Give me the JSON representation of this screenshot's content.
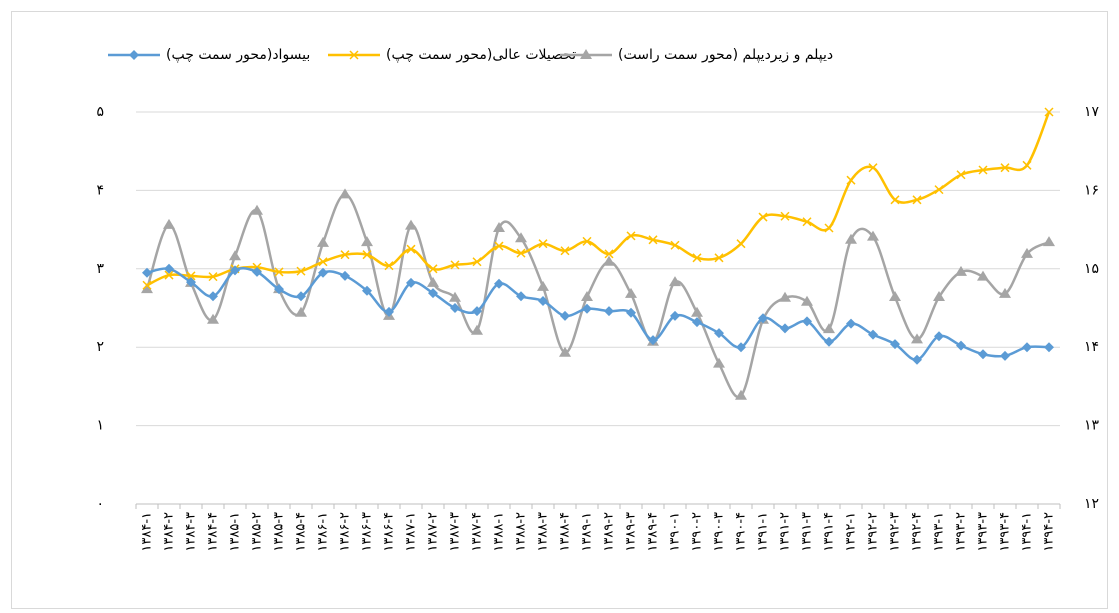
{
  "chart_data": {
    "type": "line",
    "categories": [
      "۱۳۸۴-۱",
      "۱۳۸۴-۲",
      "۱۳۸۴-۳",
      "۱۳۸۴-۴",
      "۱۳۸۵-۱",
      "۱۳۸۵-۲",
      "۱۳۸۵-۳",
      "۱۳۸۵-۴",
      "۱۳۸۶-۱",
      "۱۳۸۶-۲",
      "۱۳۸۶-۳",
      "۱۳۸۶-۴",
      "۱۳۸۷-۱",
      "۱۳۸۷-۲",
      "۱۳۸۷-۳",
      "۱۳۸۷-۴",
      "۱۳۸۸-۱",
      "۱۳۸۸-۲",
      "۱۳۸۸-۳",
      "۱۳۸۸-۴",
      "۱۳۸۹-۱",
      "۱۳۸۹-۲",
      "۱۳۸۹-۳",
      "۱۳۸۹-۴",
      "۱۳۹۰-۱",
      "۱۳۹۰-۲",
      "۱۳۹۰-۳",
      "۱۳۹۰-۴",
      "۱۳۹۱-۱",
      "۱۳۹۱-۲",
      "۱۳۹۱-۳",
      "۱۳۹۱-۴",
      "۱۳۹۲-۱",
      "۱۳۹۲-۲",
      "۱۳۹۲-۳",
      "۱۳۹۲-۴",
      "۱۳۹۳-۱",
      "۱۳۹۳-۲",
      "۱۳۹۳-۳",
      "۱۳۹۳-۴",
      "۱۳۹۴-۱",
      "۱۳۹۴-۲"
    ],
    "series": [
      {
        "name": "بیسواد(محور سمت چپ)",
        "color": "#5b9bd5",
        "marker": "diamond",
        "values": [
          2.95,
          3.0,
          2.83,
          2.65,
          2.98,
          2.96,
          2.74,
          2.65,
          2.95,
          2.91,
          2.72,
          2.45,
          2.82,
          2.69,
          2.5,
          2.46,
          2.81,
          2.65,
          2.59,
          2.4,
          2.49,
          2.46,
          2.44,
          2.09,
          2.4,
          2.32,
          2.18,
          2.0,
          2.37,
          2.24,
          2.33,
          2.07,
          2.3,
          2.16,
          2.04,
          1.84,
          2.14,
          2.02,
          1.91,
          1.89,
          2.0,
          2.0
        ]
      },
      {
        "name": "تحصیلات عالی(محور سمت چپ)",
        "color": "#ffc000",
        "marker": "x",
        "values": [
          2.79,
          2.92,
          2.91,
          2.9,
          3.0,
          3.02,
          2.96,
          2.97,
          3.09,
          3.18,
          3.18,
          3.04,
          3.25,
          3.0,
          3.05,
          3.09,
          3.29,
          3.2,
          3.32,
          3.23,
          3.35,
          3.19,
          3.42,
          3.37,
          3.3,
          3.14,
          3.14,
          3.32,
          3.66,
          3.67,
          3.6,
          3.52,
          4.13,
          4.29,
          3.88,
          3.88,
          4.01,
          4.2,
          4.26,
          4.29,
          4.32,
          5.0
        ]
      },
      {
        "name": "دیپلم و زیردیپلم (محور سمت راست)",
        "color": "#a5a5a5",
        "marker": "triangle",
        "axis": "y2",
        "values": [
          14.74,
          15.56,
          14.82,
          14.35,
          15.16,
          15.74,
          14.74,
          14.44,
          15.33,
          15.95,
          15.34,
          14.4,
          15.55,
          14.82,
          14.63,
          14.21,
          15.52,
          15.39,
          14.77,
          13.93,
          14.64,
          15.09,
          14.68,
          14.07,
          14.83,
          14.44,
          13.79,
          13.38,
          14.35,
          14.63,
          14.58,
          14.23,
          15.37,
          15.41,
          14.64,
          14.1,
          14.64,
          14.96,
          14.9,
          14.68,
          15.19,
          15.34
        ]
      }
    ],
    "ylim": [
      0,
      5
    ],
    "yticks": [
      {
        "value": 0,
        "label": "۰"
      },
      {
        "value": 1,
        "label": "۱"
      },
      {
        "value": 2,
        "label": "۲"
      },
      {
        "value": 3,
        "label": "۳"
      },
      {
        "value": 4,
        "label": "۴"
      },
      {
        "value": 5,
        "label": "۵"
      }
    ],
    "y2lim": [
      12,
      17
    ],
    "y2ticks": [
      {
        "value": 12,
        "label": "۱۲"
      },
      {
        "value": 13,
        "label": "۱۳"
      },
      {
        "value": 14,
        "label": "۱۴"
      },
      {
        "value": 15,
        "label": "۱۵"
      },
      {
        "value": 16,
        "label": "۱۶"
      },
      {
        "value": 17,
        "label": "۱۷"
      }
    ],
    "grid": true,
    "legend": "top"
  }
}
